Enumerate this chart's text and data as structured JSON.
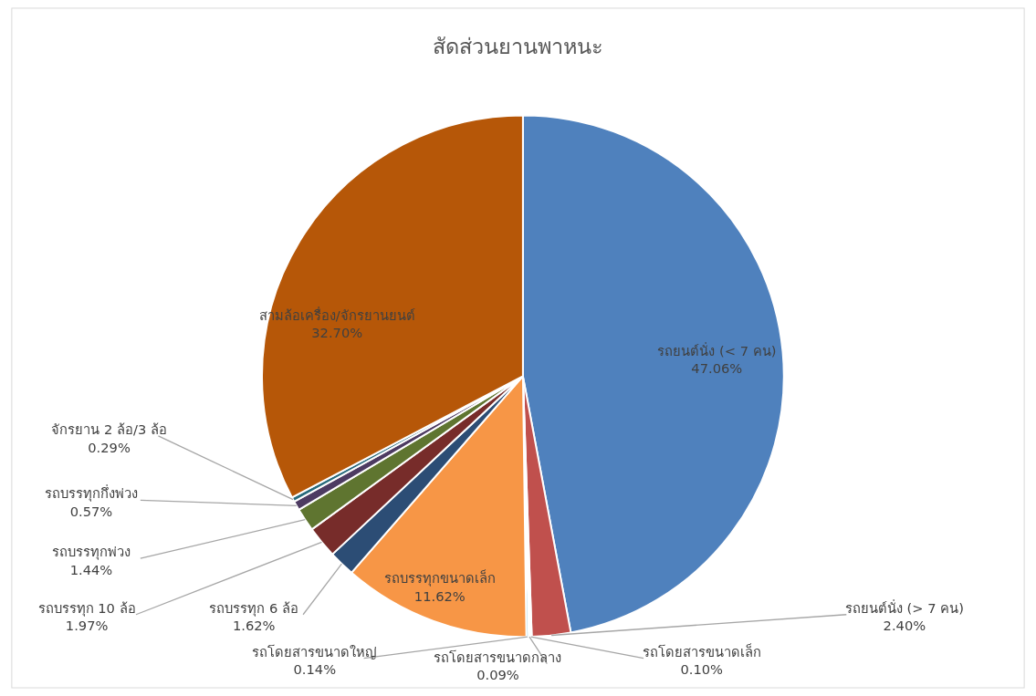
{
  "chart_data": {
    "type": "pie",
    "title": "สัดส่วนยานพาหนะ",
    "categories": [
      "รถยนต์นั่ง (< 7 คน)",
      "รถยนต์นั่ง (> 7 คน)",
      "รถโดยสารขนาดเล็ก",
      "รถโดยสารขนาดกลาง",
      "รถโดยสารขนาดใหญ่",
      "รถบรรทุกขนาดเล็ก",
      "รถบรรทุก 6 ล้อ",
      "รถบรรทุก 10 ล้อ",
      "รถบรรทุกพ่วง",
      "รถบรรทุกกึ่งพ่วง",
      "จักรยาน 2 ล้อ/3 ล้อ",
      "สามล้อเครื่อง/จักรยานยนต์"
    ],
    "values": [
      47.06,
      2.4,
      0.1,
      0.09,
      0.14,
      11.62,
      1.62,
      1.97,
      1.44,
      0.57,
      0.29,
      32.7
    ],
    "value_labels": [
      "47.06%",
      "2.40%",
      "0.10%",
      "0.09%",
      "0.14%",
      "11.62%",
      "1.62%",
      "1.97%",
      "1.44%",
      "0.57%",
      "0.29%",
      "32.70%"
    ],
    "colors": [
      "#4f81bd",
      "#c0504d",
      "#9bbb59",
      "#8064a2",
      "#4bacc6",
      "#f79646",
      "#2c4d75",
      "#772c2a",
      "#5f7530",
      "#4d3b62",
      "#276a7c",
      "#b65708"
    ]
  }
}
